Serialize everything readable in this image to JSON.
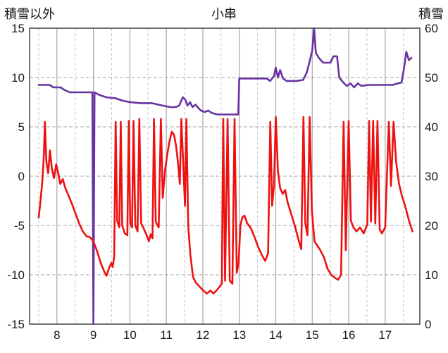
{
  "header": {
    "left_axis_title": "積雪以外",
    "title": "小串",
    "right_axis_title": "積雪"
  },
  "colors": {
    "temperature_line": "#ee1111",
    "snow_line": "#6633a2",
    "major_grid": "#a6a6a6",
    "minor_grid": "#c9c9c9",
    "horizontal_grid": "#a6a6a6",
    "border": "#404040",
    "text": "#1a1a1a",
    "background": "#ffffff"
  },
  "chart_data": {
    "type": "line",
    "title": "小串",
    "x_axis": {
      "min": 7.25,
      "max": 17.95,
      "ticks": [
        8,
        9,
        10,
        11,
        12,
        13,
        14,
        15,
        16,
        17
      ],
      "minor_step": 0.5
    },
    "left_axis": {
      "label": "積雪以外",
      "min": -15,
      "max": 15,
      "ticks": [
        15,
        10,
        5,
        0,
        -5,
        -10,
        -15
      ]
    },
    "right_axis": {
      "label": "積雪",
      "min": 0,
      "max": 60,
      "ticks": [
        60,
        50,
        40,
        30,
        20,
        10,
        0
      ]
    },
    "grid": {
      "vertical_major": "solid",
      "vertical_minor": "dashed",
      "horizontal": "dashed"
    },
    "legend": "none",
    "series": [
      {
        "name": "積雪以外",
        "axis": "left",
        "color_key": "temperature_line",
        "points": [
          [
            7.5,
            -4.2
          ],
          [
            7.55,
            -2.5
          ],
          [
            7.6,
            -0.5
          ],
          [
            7.64,
            2.0
          ],
          [
            7.67,
            5.5
          ],
          [
            7.71,
            1.5
          ],
          [
            7.76,
            0.3
          ],
          [
            7.81,
            2.6
          ],
          [
            7.86,
            0.8
          ],
          [
            7.92,
            -0.2
          ],
          [
            7.98,
            1.2
          ],
          [
            8.03,
            0.4
          ],
          [
            8.09,
            -0.8
          ],
          [
            8.16,
            -0.3
          ],
          [
            8.23,
            -1.2
          ],
          [
            8.31,
            -1.9
          ],
          [
            8.41,
            -2.8
          ],
          [
            8.51,
            -3.8
          ],
          [
            8.61,
            -4.8
          ],
          [
            8.71,
            -5.6
          ],
          [
            8.81,
            -6.1
          ],
          [
            8.91,
            -6.2
          ],
          [
            9.0,
            -6.6
          ],
          [
            9.1,
            -7.6
          ],
          [
            9.2,
            -8.8
          ],
          [
            9.3,
            -9.7
          ],
          [
            9.36,
            -10.1
          ],
          [
            9.43,
            -9.3
          ],
          [
            9.49,
            -8.8
          ],
          [
            9.53,
            -9.2
          ],
          [
            9.57,
            -8.2
          ],
          [
            9.61,
            5.5
          ],
          [
            9.65,
            -4.5
          ],
          [
            9.71,
            -5.2
          ],
          [
            9.75,
            5.5
          ],
          [
            9.79,
            -5.0
          ],
          [
            9.86,
            -5.8
          ],
          [
            9.93,
            -6.0
          ],
          [
            9.97,
            5.6
          ],
          [
            10.01,
            -4.8
          ],
          [
            10.06,
            -5.2
          ],
          [
            10.1,
            5.6
          ],
          [
            10.15,
            -5.0
          ],
          [
            10.21,
            -5.6
          ],
          [
            10.26,
            5.8
          ],
          [
            10.31,
            -4.8
          ],
          [
            10.39,
            -5.4
          ],
          [
            10.46,
            -6.0
          ],
          [
            10.52,
            -6.6
          ],
          [
            10.57,
            -5.9
          ],
          [
            10.62,
            -6.3
          ],
          [
            10.66,
            5.8
          ],
          [
            10.71,
            -4.6
          ],
          [
            10.79,
            -5.2
          ],
          [
            10.85,
            5.8
          ],
          [
            10.9,
            -2.2
          ],
          [
            10.96,
            0.5
          ],
          [
            11.03,
            2.3
          ],
          [
            11.09,
            3.6
          ],
          [
            11.15,
            4.5
          ],
          [
            11.21,
            4.2
          ],
          [
            11.27,
            3.0
          ],
          [
            11.33,
            1.0
          ],
          [
            11.37,
            -0.8
          ],
          [
            11.41,
            5.8
          ],
          [
            11.46,
            1.5
          ],
          [
            11.51,
            -3.0
          ],
          [
            11.55,
            5.8
          ],
          [
            11.6,
            -5.0
          ],
          [
            11.66,
            -8.0
          ],
          [
            11.73,
            -10.2
          ],
          [
            11.81,
            -10.8
          ],
          [
            11.91,
            -11.2
          ],
          [
            12.01,
            -11.6
          ],
          [
            12.11,
            -11.9
          ],
          [
            12.21,
            -11.6
          ],
          [
            12.29,
            -11.9
          ],
          [
            12.37,
            -11.6
          ],
          [
            12.46,
            -11.2
          ],
          [
            12.52,
            -10.9
          ],
          [
            12.56,
            5.8
          ],
          [
            12.61,
            -10.6
          ],
          [
            12.68,
            5.8
          ],
          [
            12.74,
            -10.6
          ],
          [
            12.81,
            -10.9
          ],
          [
            12.87,
            5.8
          ],
          [
            12.93,
            -9.8
          ],
          [
            12.98,
            -8.8
          ],
          [
            13.03,
            -5.0
          ],
          [
            13.08,
            -4.2
          ],
          [
            13.14,
            -4.0
          ],
          [
            13.22,
            -4.8
          ],
          [
            13.32,
            -5.3
          ],
          [
            13.42,
            -6.2
          ],
          [
            13.52,
            -7.2
          ],
          [
            13.62,
            -8.0
          ],
          [
            13.71,
            -8.6
          ],
          [
            13.79,
            -7.8
          ],
          [
            13.85,
            5.5
          ],
          [
            13.9,
            -3.0
          ],
          [
            13.95,
            -1.0
          ],
          [
            14.0,
            6.0
          ],
          [
            14.06,
            0.5
          ],
          [
            14.12,
            -1.2
          ],
          [
            14.19,
            -1.8
          ],
          [
            14.26,
            -1.4
          ],
          [
            14.32,
            -2.6
          ],
          [
            14.42,
            -3.8
          ],
          [
            14.52,
            -5.0
          ],
          [
            14.62,
            -6.4
          ],
          [
            14.7,
            -7.4
          ],
          [
            14.76,
            6.0
          ],
          [
            14.81,
            -4.8
          ],
          [
            14.87,
            -6.0
          ],
          [
            14.93,
            6.0
          ],
          [
            14.99,
            -3.4
          ],
          [
            15.06,
            -6.6
          ],
          [
            15.13,
            -7.0
          ],
          [
            15.22,
            -7.5
          ],
          [
            15.32,
            -8.2
          ],
          [
            15.42,
            -9.4
          ],
          [
            15.52,
            -10.0
          ],
          [
            15.62,
            -10.3
          ],
          [
            15.71,
            -10.5
          ],
          [
            15.79,
            -10.0
          ],
          [
            15.86,
            5.5
          ],
          [
            15.92,
            -7.5
          ],
          [
            16.0,
            5.6
          ],
          [
            16.06,
            -4.5
          ],
          [
            16.13,
            -5.2
          ],
          [
            16.21,
            -5.6
          ],
          [
            16.31,
            -5.2
          ],
          [
            16.41,
            -5.8
          ],
          [
            16.51,
            -4.9
          ],
          [
            16.56,
            5.6
          ],
          [
            16.61,
            -4.6
          ],
          [
            16.67,
            5.6
          ],
          [
            16.73,
            -4.8
          ],
          [
            16.79,
            5.6
          ],
          [
            16.85,
            -5.4
          ],
          [
            16.91,
            -5.8
          ],
          [
            17.0,
            -5.2
          ],
          [
            17.1,
            5.5
          ],
          [
            17.16,
            -1.0
          ],
          [
            17.23,
            5.5
          ],
          [
            17.3,
            1.5
          ],
          [
            17.38,
            -0.8
          ],
          [
            17.46,
            -2.0
          ],
          [
            17.56,
            -3.2
          ],
          [
            17.66,
            -4.6
          ],
          [
            17.75,
            -5.6
          ]
        ]
      },
      {
        "name": "積雪",
        "axis": "right",
        "color_key": "snow_line",
        "points": [
          [
            7.5,
            48.5
          ],
          [
            7.8,
            48.5
          ],
          [
            7.9,
            48.0
          ],
          [
            8.1,
            48.0
          ],
          [
            8.2,
            47.5
          ],
          [
            8.35,
            47.0
          ],
          [
            8.6,
            47.0
          ],
          [
            8.97,
            47.0
          ],
          [
            9.0,
            0.0
          ],
          [
            9.03,
            47.0
          ],
          [
            9.15,
            46.5
          ],
          [
            9.35,
            46.0
          ],
          [
            9.6,
            45.8
          ],
          [
            9.8,
            45.3
          ],
          [
            10.0,
            45.0
          ],
          [
            10.3,
            44.8
          ],
          [
            10.6,
            44.8
          ],
          [
            10.9,
            44.3
          ],
          [
            11.1,
            44.0
          ],
          [
            11.25,
            44.0
          ],
          [
            11.35,
            44.3
          ],
          [
            11.45,
            46.0
          ],
          [
            11.52,
            45.5
          ],
          [
            11.58,
            44.3
          ],
          [
            11.65,
            45.0
          ],
          [
            11.72,
            44.0
          ],
          [
            11.8,
            44.5
          ],
          [
            11.88,
            43.8
          ],
          [
            11.95,
            43.3
          ],
          [
            12.05,
            43.0
          ],
          [
            12.15,
            43.3
          ],
          [
            12.25,
            42.8
          ],
          [
            12.4,
            42.5
          ],
          [
            12.7,
            42.5
          ],
          [
            12.97,
            42.5
          ],
          [
            13.0,
            49.8
          ],
          [
            13.4,
            49.8
          ],
          [
            13.75,
            49.8
          ],
          [
            13.85,
            49.3
          ],
          [
            13.95,
            50.3
          ],
          [
            14.0,
            52.0
          ],
          [
            14.06,
            50.0
          ],
          [
            14.12,
            51.5
          ],
          [
            14.2,
            49.8
          ],
          [
            14.3,
            49.3
          ],
          [
            14.55,
            49.3
          ],
          [
            14.75,
            49.5
          ],
          [
            14.85,
            51.0
          ],
          [
            14.92,
            53.0
          ],
          [
            15.0,
            55.5
          ],
          [
            15.05,
            60.0
          ],
          [
            15.1,
            55.0
          ],
          [
            15.18,
            54.0
          ],
          [
            15.3,
            53.0
          ],
          [
            15.5,
            53.0
          ],
          [
            15.58,
            54.3
          ],
          [
            15.68,
            54.3
          ],
          [
            15.74,
            50.0
          ],
          [
            15.85,
            49.0
          ],
          [
            15.95,
            48.3
          ],
          [
            16.05,
            48.8
          ],
          [
            16.15,
            48.0
          ],
          [
            16.25,
            48.8
          ],
          [
            16.35,
            48.3
          ],
          [
            16.55,
            48.5
          ],
          [
            16.8,
            48.5
          ],
          [
            17.0,
            48.5
          ],
          [
            17.2,
            48.5
          ],
          [
            17.35,
            48.8
          ],
          [
            17.45,
            49.0
          ],
          [
            17.52,
            52.0
          ],
          [
            17.58,
            55.2
          ],
          [
            17.65,
            53.5
          ],
          [
            17.72,
            54.0
          ]
        ]
      }
    ]
  }
}
